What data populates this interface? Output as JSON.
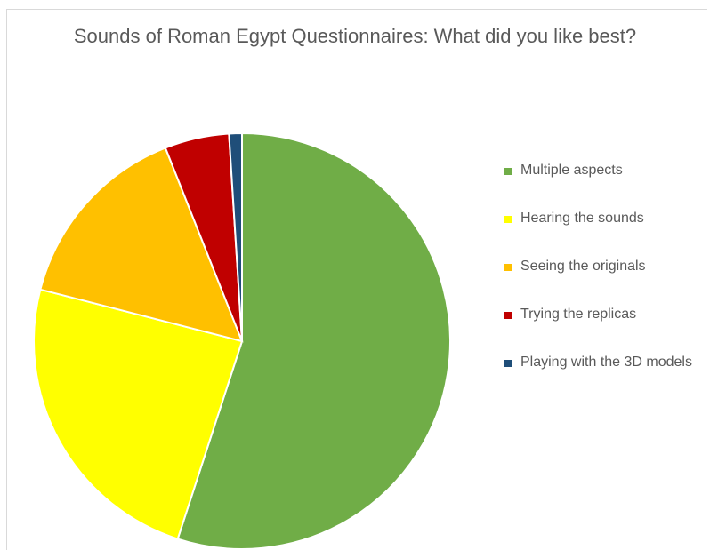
{
  "chart_data": {
    "type": "pie",
    "title": "Sounds of Roman Egypt Questionnaires: What did you like best?",
    "legend_position": "right",
    "slices": [
      {
        "label": "Multiple aspects",
        "value": 55,
        "color": "#70ad47"
      },
      {
        "label": "Hearing the sounds",
        "value": 24,
        "color": "#ffff00"
      },
      {
        "label": "Seeing the originals",
        "value": 15,
        "color": "#ffc000"
      },
      {
        "label": "Trying the replicas",
        "value": 5,
        "color": "#c00000"
      },
      {
        "label": "Playing with the 3D models",
        "value": 1,
        "color": "#1f4e79"
      }
    ]
  }
}
